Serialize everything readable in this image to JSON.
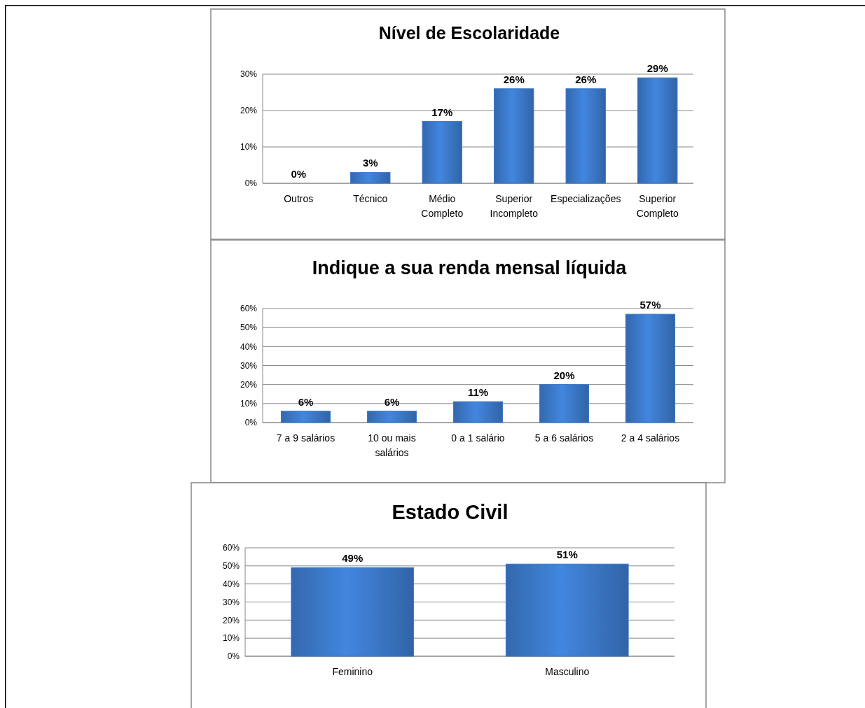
{
  "chart_data": [
    {
      "type": "bar",
      "title": "Nível de Escolaridade",
      "categories": [
        "Outros",
        "Técnico",
        "Médio Completo",
        "Superior Incompleto",
        "Especializações",
        "Superior Completo"
      ],
      "values": [
        0,
        3,
        17,
        26,
        26,
        29
      ],
      "value_labels": [
        "0%",
        "3%",
        "17%",
        "26%",
        "26%",
        "29%"
      ],
      "color": "#3b78c8",
      "ylim": [
        0,
        30
      ],
      "yticks": [
        {
          "value": 0,
          "label": "0%"
        },
        {
          "value": 10,
          "label": "10%"
        },
        {
          "value": 20,
          "label": "20%"
        },
        {
          "value": 30,
          "label": "30%"
        }
      ],
      "grid": "y"
    },
    {
      "type": "bar",
      "title": "Indique a sua renda mensal líquida",
      "categories": [
        "7 a 9 salários",
        "10 ou mais salários",
        "0 a 1 salário",
        "5 a 6 salários",
        "2 a 4 salários"
      ],
      "values": [
        6,
        6,
        11,
        20,
        57
      ],
      "value_labels": [
        "6%",
        "6%",
        "11%",
        "20%",
        "57%"
      ],
      "color": "#3b78c8",
      "ylim": [
        0,
        60
      ],
      "yticks": [
        {
          "value": 0,
          "label": "0%"
        },
        {
          "value": 10,
          "label": "10%"
        },
        {
          "value": 20,
          "label": "20%"
        },
        {
          "value": 30,
          "label": "30%"
        },
        {
          "value": 40,
          "label": "40%"
        },
        {
          "value": 50,
          "label": "50%"
        },
        {
          "value": 60,
          "label": "60%"
        }
      ],
      "grid": "y"
    },
    {
      "type": "bar",
      "title": "Estado Civil",
      "categories": [
        "Feminino",
        "Masculino"
      ],
      "values": [
        49,
        51
      ],
      "value_labels": [
        "49%",
        "51%"
      ],
      "color": "#3b78c8",
      "ylim": [
        0,
        60
      ],
      "yticks": [
        {
          "value": 0,
          "label": "0%"
        },
        {
          "value": 10,
          "label": "10%"
        },
        {
          "value": 20,
          "label": "20%"
        },
        {
          "value": 30,
          "label": "30%"
        },
        {
          "value": 40,
          "label": "40%"
        },
        {
          "value": 50,
          "label": "50%"
        },
        {
          "value": 60,
          "label": "60%"
        }
      ],
      "grid": "y"
    }
  ]
}
